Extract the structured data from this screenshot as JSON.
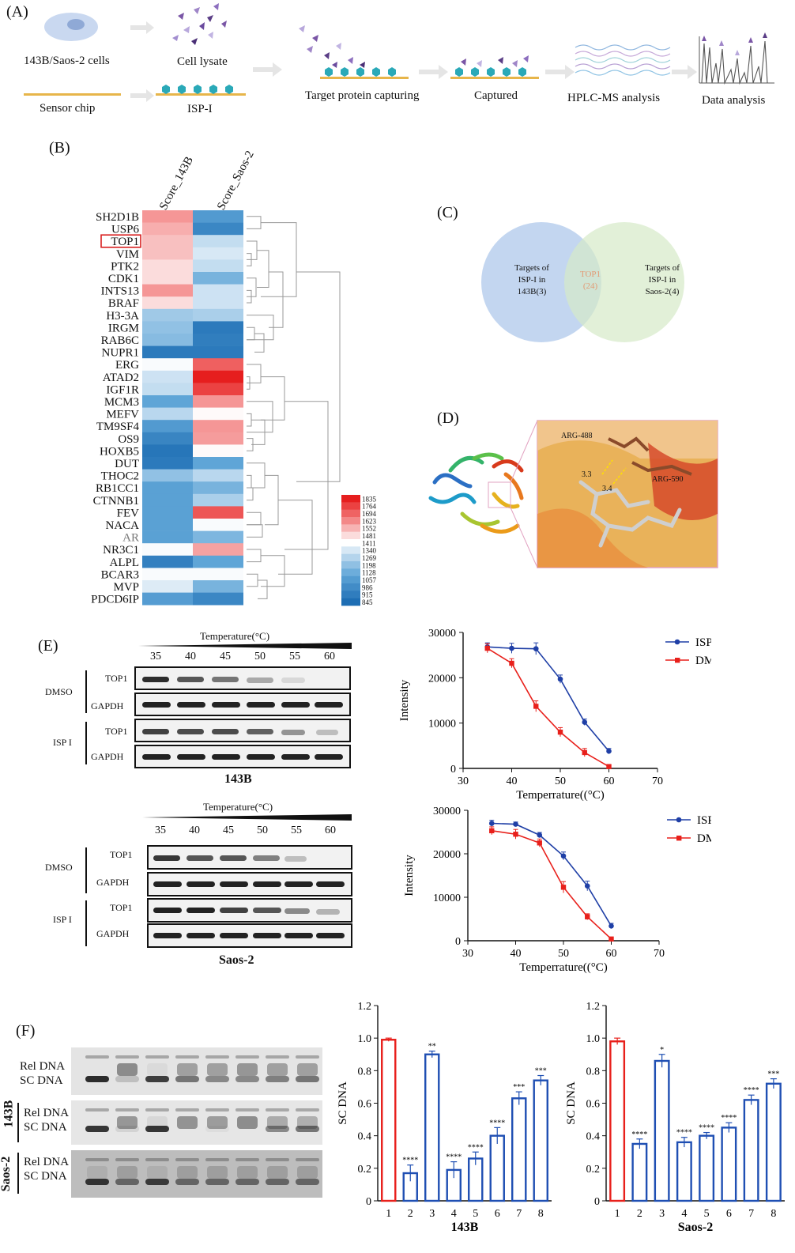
{
  "panelA": {
    "label": "(A)",
    "cells": "143B/Saos-2 cells",
    "lysate": "Cell lysate",
    "chip": "Sensor  chip",
    "isp": "ISP-I",
    "capture": "Target protein capturing",
    "captured": "Captured",
    "hplc": "HPLC-MS analysis",
    "analysis": "Data analysis"
  },
  "panelB": {
    "label": "(B)",
    "col1": "Score_143B",
    "col2": "Score_Saos-2",
    "highlight": "TOP1",
    "genes": [
      "SH2D1B",
      "USP6",
      "TOP1",
      "VIM",
      "PTK2",
      "CDK1",
      "INTS13",
      "BRAF",
      "H3-3A",
      "IRGM",
      "RAB6C",
      "NUPR1",
      "ERG",
      "ATAD2",
      "IGF1R",
      "MCM3",
      "MEFV",
      "TM9SF4",
      "OS9",
      "HOXB5",
      "DUT",
      "THOC2",
      "RB1CC1",
      "CTNNB1",
      "FEV",
      "NACA",
      "AR",
      "NR3C1",
      "ALPL",
      "BCAR3",
      "MVP",
      "PDCD6IP"
    ],
    "score_143b": [
      1600,
      1560,
      1530,
      1530,
      1480,
      1480,
      1600,
      1480,
      1230,
      1200,
      1180,
      900,
      1400,
      1320,
      1300,
      1100,
      1280,
      1050,
      950,
      880,
      900,
      1200,
      1080,
      1080,
      1080,
      1080,
      1080,
      1400,
      930,
      1400,
      1350,
      1060
    ],
    "score_saos2": [
      1050,
      960,
      1300,
      1340,
      1300,
      1150,
      1320,
      1320,
      1250,
      900,
      920,
      900,
      1700,
      1835,
      1760,
      1600,
      1420,
      1600,
      1590,
      1420,
      1100,
      1280,
      1150,
      1250,
      1720,
      1400,
      1160,
      1580,
      1100,
      1400,
      1150,
      960
    ],
    "legend_ticks": [
      "1835",
      "1764",
      "1694",
      "1623",
      "1552",
      "1481",
      "1411",
      "1340",
      "1269",
      "1198",
      "1128",
      "1057",
      "986",
      "915",
      "845"
    ]
  },
  "panelC": {
    "label": "(C)",
    "left": [
      "Targets of",
      "ISP-I in",
      "143B(3)"
    ],
    "center": [
      "TOP1",
      "(24)"
    ],
    "right": [
      "Targets of",
      "ISP-I in",
      "Saos-2(4)"
    ]
  },
  "panelD": {
    "label": "(D)",
    "res1": "ARG-488",
    "res2": "ARG-590",
    "dist1": "3.3",
    "dist2": "3.4"
  },
  "panelE": {
    "label": "(E)",
    "temp_title": "Temperature(°C)",
    "temps": [
      "35",
      "40",
      "45",
      "50",
      "55",
      "60"
    ],
    "dmso": "DMSO",
    "isp": "ISP I",
    "top1": "TOP1",
    "gapdh": "GAPDH",
    "cell1": "143B",
    "cell2": "Saos-2"
  },
  "panelF": {
    "label": "(F)",
    "rel": "Rel DNA",
    "sc": "SC DNA",
    "row2": "143B",
    "row3": "Saos-2"
  },
  "chart_data": [
    {
      "type": "line",
      "panel": "E-143B",
      "x": [
        35,
        40,
        45,
        50,
        55,
        60
      ],
      "series": [
        {
          "name": "ISP I",
          "values": [
            26800,
            26500,
            26400,
            19700,
            10200,
            3800
          ],
          "errors": [
            900,
            1100,
            1300,
            900,
            700,
            600
          ],
          "color": "#1f3fa6"
        },
        {
          "name": "DMSO",
          "values": [
            26500,
            23200,
            13700,
            8000,
            3500,
            400
          ],
          "errors": [
            1000,
            1000,
            1200,
            1000,
            900,
            300
          ],
          "color": "#e8201b"
        }
      ],
      "xlabel": "Temperrature((°C)",
      "ylabel": "Intensity",
      "xlim": [
        30,
        70
      ],
      "ylim": [
        0,
        30000
      ],
      "xticks": [
        30,
        40,
        50,
        60,
        70
      ],
      "yticks": [
        0,
        10000,
        20000,
        30000
      ],
      "legend": "top-right"
    },
    {
      "type": "line",
      "panel": "E-Saos-2",
      "x": [
        35,
        40,
        45,
        50,
        55,
        60
      ],
      "series": [
        {
          "name": "ISP I",
          "values": [
            27000,
            26800,
            24300,
            19500,
            12600,
            3400
          ],
          "errors": [
            700,
            500,
            600,
            900,
            1100,
            600
          ],
          "color": "#1f3fa6"
        },
        {
          "name": "DMSO",
          "values": [
            25300,
            24500,
            22500,
            12300,
            5500,
            400
          ],
          "errors": [
            900,
            1100,
            900,
            1300,
            700,
            300
          ],
          "color": "#e8201b"
        }
      ],
      "xlabel": "Temperrature((°C)",
      "ylabel": "Intensity",
      "xlim": [
        30,
        70
      ],
      "ylim": [
        0,
        30000
      ],
      "xticks": [
        30,
        40,
        50,
        60,
        70
      ],
      "yticks": [
        0,
        10000,
        20000,
        30000
      ],
      "legend": "top-right"
    },
    {
      "type": "bar",
      "panel": "F-143B",
      "categories": [
        "1",
        "2",
        "3",
        "4",
        "5",
        "6",
        "7",
        "8"
      ],
      "values": [
        0.99,
        0.17,
        0.9,
        0.19,
        0.26,
        0.4,
        0.63,
        0.74
      ],
      "errors": [
        0.01,
        0.05,
        0.02,
        0.05,
        0.04,
        0.05,
        0.04,
        0.03
      ],
      "significance": [
        "",
        "****",
        "**",
        "****",
        "****",
        "****",
        "***",
        "***"
      ],
      "title": "143B",
      "ylabel": "SC DNA",
      "ylim": [
        0,
        1.2
      ],
      "yticks": [
        "0",
        "0.2",
        "0.4",
        "0.6",
        "0.8",
        "1.0",
        "1.2"
      ]
    },
    {
      "type": "bar",
      "panel": "F-Saos-2",
      "categories": [
        "1",
        "2",
        "3",
        "4",
        "5",
        "6",
        "7",
        "8"
      ],
      "values": [
        0.98,
        0.35,
        0.86,
        0.36,
        0.4,
        0.45,
        0.62,
        0.72
      ],
      "errors": [
        0.02,
        0.03,
        0.04,
        0.03,
        0.02,
        0.03,
        0.03,
        0.03
      ],
      "significance": [
        "",
        "****",
        "*",
        "****",
        "****",
        "****",
        "****",
        "***"
      ],
      "title": "Saos-2",
      "ylabel": "SC DNA",
      "ylim": [
        0,
        1.2
      ],
      "yticks": [
        "0",
        "0.2",
        "0.4",
        "0.6",
        "0.8",
        "1.0",
        "1.2"
      ]
    }
  ]
}
